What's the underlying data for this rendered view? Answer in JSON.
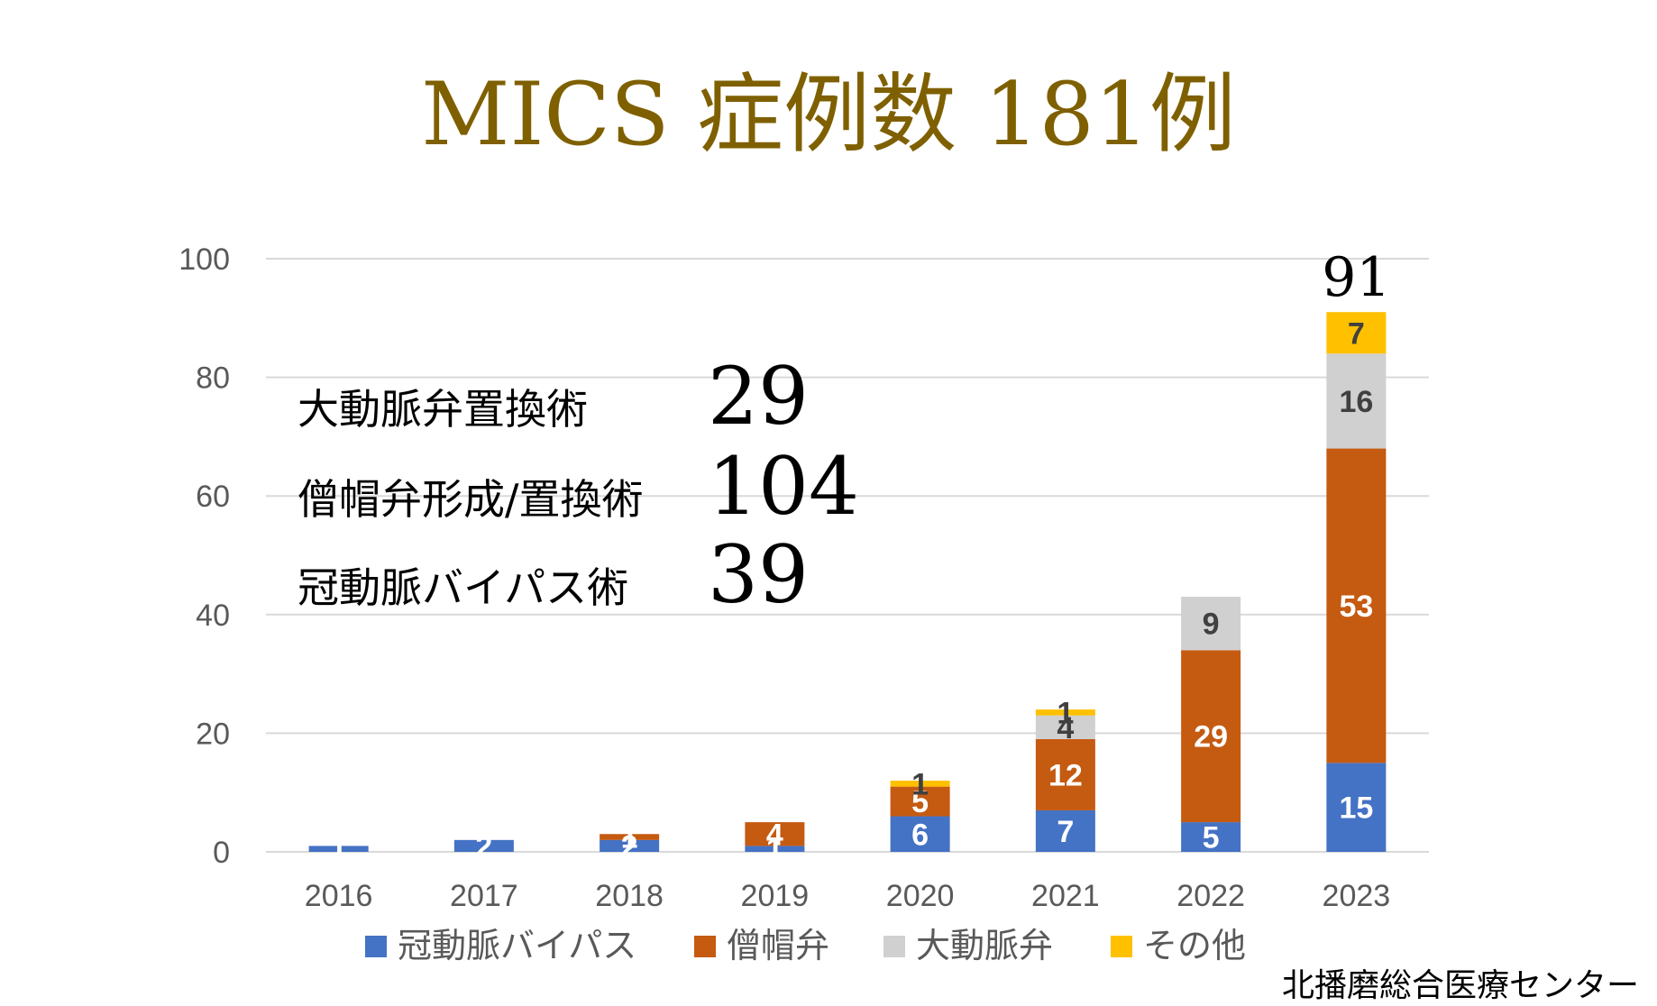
{
  "colors": {
    "cabg": "#4472C4",
    "mitral": "#C55A11",
    "aortic": "#D0D0D0",
    "other": "#FFC000",
    "title": "#7F6000",
    "grid": "#D9D9D9",
    "axis_text": "#595959"
  },
  "chart_data": {
    "type": "bar",
    "stacked": true,
    "title": "MICS 症例数 181例",
    "categories": [
      "2016",
      "2017",
      "2018",
      "2019",
      "2020",
      "2021",
      "2022",
      "2023"
    ],
    "series": [
      {
        "name": "冠動脈バイパス",
        "color_key": "cabg",
        "values": [
          1,
          2,
          2,
          1,
          6,
          7,
          5,
          15
        ],
        "labels": [
          "1",
          "2",
          "2",
          "1",
          "6",
          "7",
          "5",
          "15"
        ]
      },
      {
        "name": "僧帽弁",
        "color_key": "mitral",
        "values": [
          0,
          0,
          1,
          4,
          5,
          12,
          29,
          53
        ],
        "labels": [
          "",
          "",
          "1",
          "4",
          "5",
          "12",
          "29",
          "53"
        ]
      },
      {
        "name": "大動脈弁",
        "color_key": "aortic",
        "values": [
          0,
          0,
          0,
          0,
          0,
          4,
          9,
          16
        ],
        "labels": [
          "",
          "",
          "",
          "",
          "",
          "4",
          "9",
          "16"
        ]
      },
      {
        "name": "その他",
        "color_key": "other",
        "values": [
          0,
          0,
          0,
          0,
          1,
          1,
          0,
          7
        ],
        "labels": [
          "",
          "",
          "",
          "",
          "1",
          "1",
          "",
          "7"
        ]
      }
    ],
    "ylim": [
      0,
      100
    ],
    "yticks": [
      "0",
      "20",
      "40",
      "60",
      "80",
      "100"
    ],
    "grid": true,
    "legend_position": "bottom",
    "annotations": [
      {
        "category": "2023",
        "text": "91"
      }
    ]
  },
  "summary": [
    {
      "label": "大動脈弁置換術",
      "value": "29"
    },
    {
      "label": "僧帽弁形成/置換術",
      "value": "104"
    },
    {
      "label": "冠動脈バイパス術",
      "value": "39"
    }
  ],
  "source": "北播磨総合医療センター"
}
